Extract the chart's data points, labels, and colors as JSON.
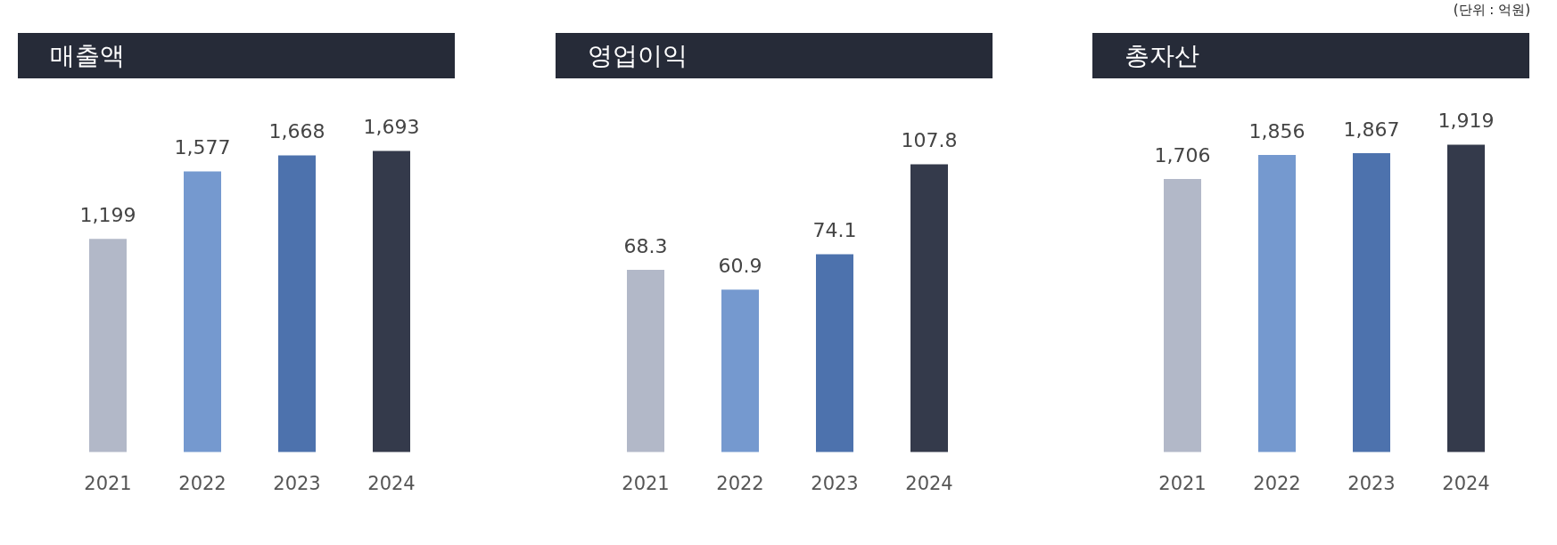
{
  "chart_data": [
    {
      "type": "bar",
      "title": "매출액",
      "categories": [
        "2021",
        "2022",
        "2023",
        "2024"
      ],
      "values": [
        1199,
        1577,
        1668,
        1693
      ],
      "value_labels": [
        "1,199",
        "1,577",
        "1,668",
        "1,693"
      ],
      "colors": [
        "#b2b8c8",
        "#7599cf",
        "#4d72ad",
        "#343a4b"
      ]
    },
    {
      "type": "bar",
      "title": "영업이익",
      "categories": [
        "2021",
        "2022",
        "2023",
        "2024"
      ],
      "values": [
        68.3,
        60.9,
        74.1,
        107.8
      ],
      "colors": [
        "#b2b8c8",
        "#7599cf",
        "#4d72ad",
        "#343a4b"
      ],
      "data_labels": true
    },
    {
      "type": "bar",
      "title": "총자산",
      "categories": [
        "2021",
        "2022",
        "2023",
        "2024"
      ],
      "values": [
        1706,
        1856,
        1867,
        1919
      ],
      "value_labels": [
        "1,706",
        "1,856",
        "1,867",
        "1,919"
      ],
      "colors": [
        "#b2b8c8",
        "#7599cf",
        "#4d72ad",
        "#343a4b"
      ],
      "annotations": [
        "(단위 : 억원)"
      ]
    }
  ]
}
